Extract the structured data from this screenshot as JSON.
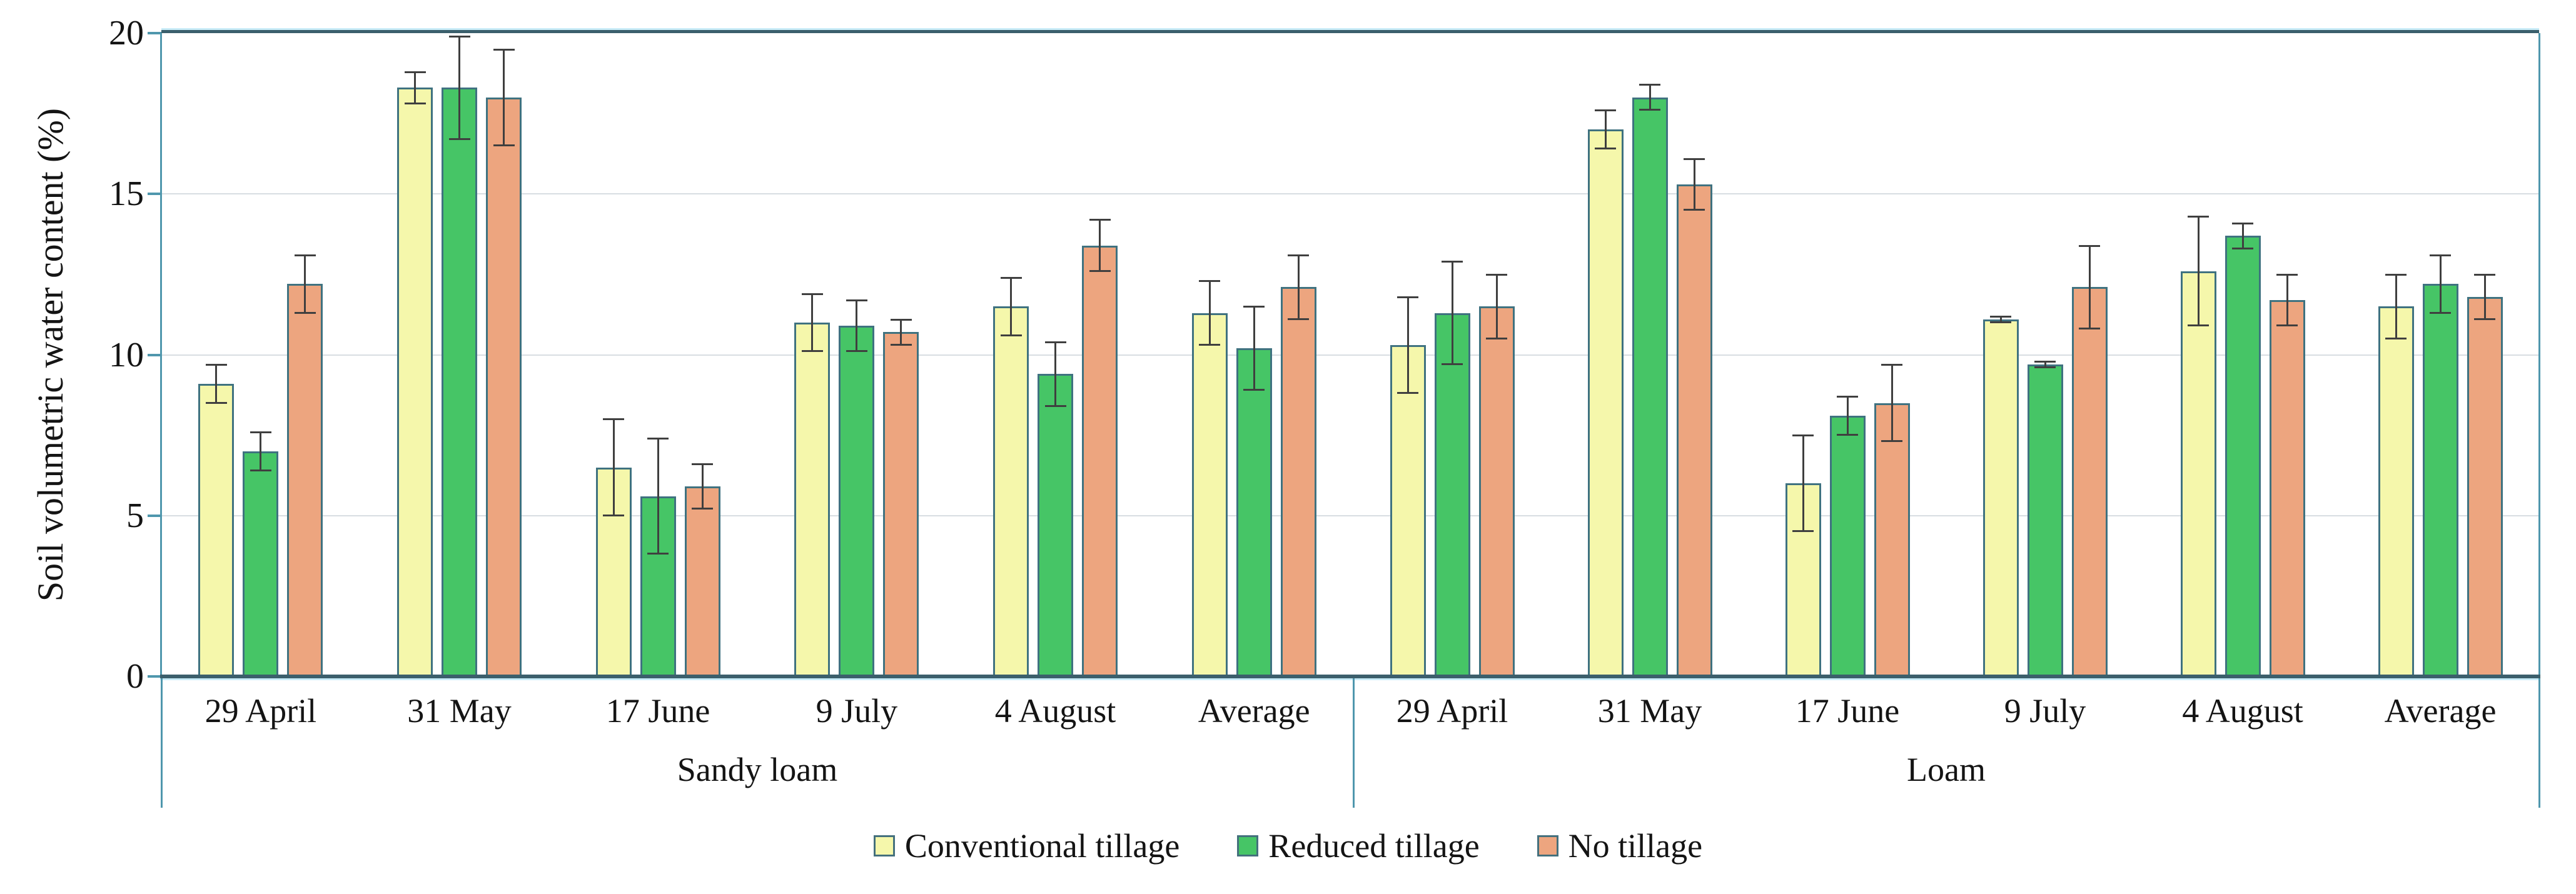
{
  "chart_data": {
    "type": "bar",
    "title": "",
    "ylabel": "Soil volumetric water content (%)",
    "ylim": [
      0,
      20
    ],
    "yticks": [
      0,
      5,
      10,
      15,
      20
    ],
    "grid": "horizontal",
    "legend_position": "bottom",
    "error_bars": true,
    "series": [
      {
        "name": "Conventional tillage",
        "fill": "#f5f7ab"
      },
      {
        "name": "Reduced tillage",
        "fill": "#46c566"
      },
      {
        "name": "No tillage",
        "fill": "#eda57f"
      }
    ],
    "sections": [
      {
        "label": "Sandy loam",
        "categories": [
          "29 April",
          "31 May",
          "17 June",
          "9 July",
          "4 August",
          "Average"
        ],
        "values": [
          [
            9.1,
            7.0,
            12.2
          ],
          [
            18.3,
            18.3,
            18.0
          ],
          [
            6.5,
            5.6,
            5.9
          ],
          [
            11.0,
            10.9,
            10.7
          ],
          [
            11.5,
            9.4,
            13.4
          ],
          [
            11.3,
            10.2,
            12.1
          ]
        ],
        "errors": [
          [
            0.6,
            0.6,
            0.9
          ],
          [
            0.5,
            1.6,
            1.5
          ],
          [
            1.5,
            1.8,
            0.7
          ],
          [
            0.9,
            0.8,
            0.4
          ],
          [
            0.9,
            1.0,
            0.8
          ],
          [
            1.0,
            1.3,
            1.0
          ]
        ]
      },
      {
        "label": "Loam",
        "categories": [
          "29 April",
          "31 May",
          "17 June",
          "9 July",
          "4 August",
          "Average"
        ],
        "values": [
          [
            10.3,
            11.3,
            11.5
          ],
          [
            17.0,
            18.0,
            15.3
          ],
          [
            6.0,
            8.1,
            8.5
          ],
          [
            11.1,
            9.7,
            12.1
          ],
          [
            12.6,
            13.7,
            11.7
          ],
          [
            11.5,
            12.2,
            11.8
          ]
        ],
        "errors": [
          [
            1.5,
            1.6,
            1.0
          ],
          [
            0.6,
            0.4,
            0.8
          ],
          [
            1.5,
            0.6,
            1.2
          ],
          [
            0.1,
            0.1,
            1.3
          ],
          [
            1.7,
            0.4,
            0.8
          ],
          [
            1.0,
            0.9,
            0.7
          ]
        ]
      }
    ],
    "colors": {
      "bar_stroke": "#3f7280",
      "axis_line": "#3b5f6c",
      "axis_accent": "#c9ecf8",
      "plot_border": "#4f97ad",
      "gridline": "#d8dde2",
      "error_bar": "#3f3f3f",
      "text": "#141414"
    }
  }
}
